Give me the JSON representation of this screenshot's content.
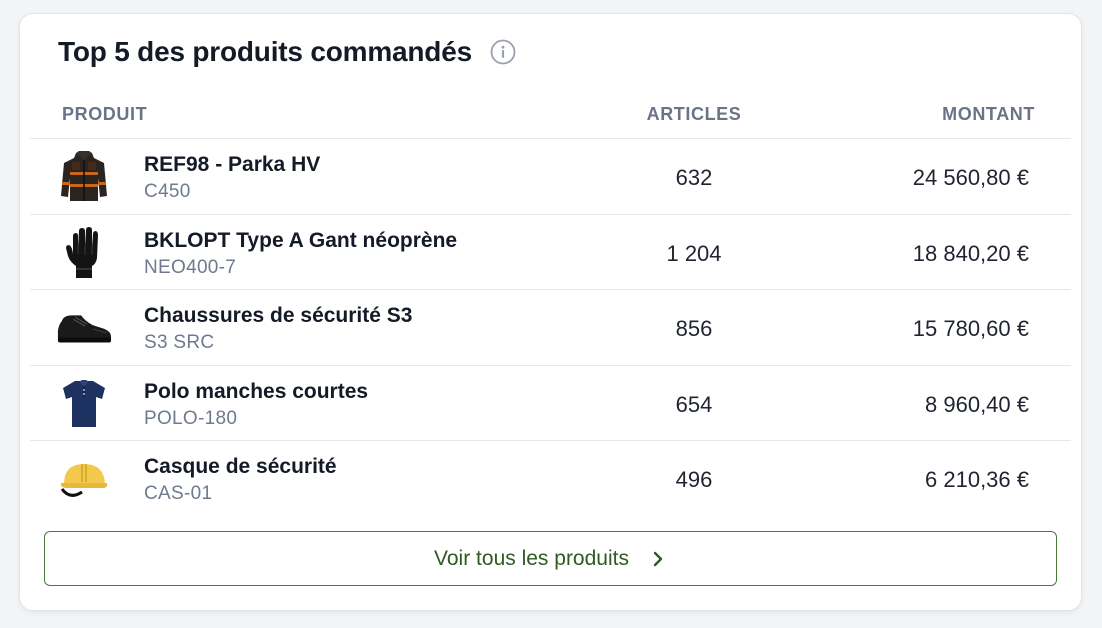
{
  "card": {
    "title": "Top 5 des produits commandés",
    "info_icon": "info-circle-icon"
  },
  "table": {
    "headers": {
      "product": "PRODUIT",
      "articles": "ARTICLES",
      "amount": "MONTANT"
    },
    "rows": [
      {
        "name": "REF98 - Parka HV",
        "ref": "C450",
        "articles": "632",
        "amount": "24 560,80 €",
        "thumb_icon": "parka-icon"
      },
      {
        "name": "BKLOPT Type A Gant néoprène",
        "ref": "NEO400-7",
        "articles": "1 204",
        "amount": "18 840,20 €",
        "thumb_icon": "glove-icon"
      },
      {
        "name": "Chaussures de sécurité S3",
        "ref": "S3 SRC",
        "articles": "856",
        "amount": "15 780,60 €",
        "thumb_icon": "safety-shoe-icon"
      },
      {
        "name": "Polo manches courtes",
        "ref": "POLO-180",
        "articles": "654",
        "amount": "8 960,40 €",
        "thumb_icon": "polo-shirt-icon"
      },
      {
        "name": "Casque de sécurité",
        "ref": "CAS-01",
        "articles": "496",
        "amount": "6 210,36 €",
        "thumb_icon": "hard-hat-icon"
      }
    ]
  },
  "footer": {
    "cta_label": "Voir tous les produits",
    "cta_icon": "chevron-right-icon",
    "accent_color": "#2f5a22"
  }
}
